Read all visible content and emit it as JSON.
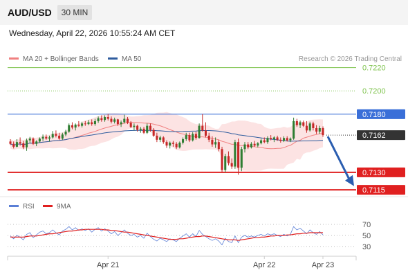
{
  "header": {
    "symbol": "AUD/USD",
    "timeframe": "30 MIN"
  },
  "datetime": "Wednesday, April 22, 2026 10:55:24 AM CET",
  "legend": [
    {
      "label": "MA 20 + Bollinger Bands",
      "color": "#f08080"
    },
    {
      "label": "MA 50",
      "color": "#2e5c9e"
    }
  ],
  "credit": "Research © 2026 Trading Central",
  "rsi_legend": [
    {
      "label": "RSI",
      "color": "#5b7fd6"
    },
    {
      "label": "9MA",
      "color": "#e02020"
    }
  ],
  "chart_data": [
    {
      "type": "candlestick",
      "ylim": [
        0.71115,
        0.72245
      ],
      "levels": [
        {
          "label": "0.7220",
          "value": 0.722,
          "color": "#7cc24a",
          "style": "solid"
        },
        {
          "label": "0.7200",
          "value": 0.72,
          "color": "#7cc24a",
          "style": "dotted"
        },
        {
          "label": "0.7180",
          "value": 0.718,
          "color": "#3a6fd8",
          "style": "solid"
        },
        {
          "label": "0.7162",
          "value": 0.7162,
          "color": "#333333",
          "style": "dotted"
        },
        {
          "label": "0.7130",
          "value": 0.713,
          "color": "#e02020",
          "style": "solid"
        },
        {
          "label": "0.7115",
          "value": 0.7115,
          "color": "#e02020",
          "style": "solid"
        }
      ],
      "current_price": 0.7162,
      "forecast_arrow": {
        "from": 0.7162,
        "to": 0.7117,
        "color": "#2a5db0"
      },
      "bullish_color": "#2e7d32",
      "bearish_color": "#c62828",
      "candles_ohlc": [
        [
          0.71565,
          0.71585,
          0.71535,
          0.71545
        ],
        [
          0.71545,
          0.71565,
          0.71505,
          0.7152
        ],
        [
          0.7152,
          0.71585,
          0.71515,
          0.7156
        ],
        [
          0.7156,
          0.716,
          0.7153,
          0.7155
        ],
        [
          0.7155,
          0.7157,
          0.715,
          0.71515
        ],
        [
          0.71515,
          0.7159,
          0.71485,
          0.71575
        ],
        [
          0.71575,
          0.71605,
          0.71555,
          0.7159
        ],
        [
          0.7159,
          0.716,
          0.71535,
          0.71545
        ],
        [
          0.71545,
          0.71575,
          0.71525,
          0.71565
        ],
        [
          0.71565,
          0.716,
          0.71555,
          0.7159
        ],
        [
          0.7159,
          0.71625,
          0.7157,
          0.71605
        ],
        [
          0.71605,
          0.71625,
          0.7158,
          0.7159
        ],
        [
          0.7159,
          0.71615,
          0.71565,
          0.716
        ],
        [
          0.716,
          0.71655,
          0.7159,
          0.7163
        ],
        [
          0.7163,
          0.7166,
          0.716,
          0.71615
        ],
        [
          0.71615,
          0.7164,
          0.7158,
          0.7159
        ],
        [
          0.7159,
          0.7164,
          0.7158,
          0.71625
        ],
        [
          0.71625,
          0.71665,
          0.7161,
          0.7165
        ],
        [
          0.7165,
          0.7172,
          0.7164,
          0.71705
        ],
        [
          0.71705,
          0.7173,
          0.7167,
          0.71685
        ],
        [
          0.71685,
          0.7172,
          0.7166,
          0.7171
        ],
        [
          0.7171,
          0.7174,
          0.7169,
          0.717
        ],
        [
          0.717,
          0.71735,
          0.71685,
          0.7172
        ],
        [
          0.7172,
          0.7174,
          0.717,
          0.71715
        ],
        [
          0.71715,
          0.7175,
          0.71705,
          0.7173
        ],
        [
          0.7173,
          0.71755,
          0.717,
          0.71715
        ],
        [
          0.71715,
          0.7176,
          0.717,
          0.7174
        ],
        [
          0.7174,
          0.7178,
          0.71725,
          0.71765
        ],
        [
          0.71765,
          0.7179,
          0.71735,
          0.7175
        ],
        [
          0.7175,
          0.7179,
          0.71735,
          0.71775
        ],
        [
          0.71775,
          0.718,
          0.71745,
          0.7176
        ],
        [
          0.7176,
          0.7178,
          0.7172,
          0.71735
        ],
        [
          0.71735,
          0.7177,
          0.7172,
          0.71755
        ],
        [
          0.71755,
          0.7176,
          0.717,
          0.71715
        ],
        [
          0.71715,
          0.71745,
          0.7169,
          0.7173
        ],
        [
          0.7173,
          0.71795,
          0.7172,
          0.7176
        ],
        [
          0.7176,
          0.71775,
          0.71715,
          0.71725
        ],
        [
          0.71725,
          0.7174,
          0.7168,
          0.7169
        ],
        [
          0.7169,
          0.7172,
          0.7166,
          0.717
        ],
        [
          0.717,
          0.7171,
          0.7165,
          0.71665
        ],
        [
          0.71665,
          0.7169,
          0.7164,
          0.71675
        ],
        [
          0.71675,
          0.7169,
          0.7163,
          0.7164
        ],
        [
          0.7164,
          0.7172,
          0.7163,
          0.717
        ],
        [
          0.717,
          0.7172,
          0.7165,
          0.71665
        ],
        [
          0.71665,
          0.7168,
          0.71605,
          0.71615
        ],
        [
          0.71615,
          0.7164,
          0.7156,
          0.7158
        ],
        [
          0.7158,
          0.71615,
          0.7156,
          0.716
        ],
        [
          0.716,
          0.7161,
          0.71545,
          0.7156
        ],
        [
          0.7156,
          0.71575,
          0.7151,
          0.7153
        ],
        [
          0.7153,
          0.71565,
          0.71505,
          0.71555
        ],
        [
          0.71555,
          0.7157,
          0.7152,
          0.71545
        ],
        [
          0.71545,
          0.7156,
          0.715,
          0.71515
        ],
        [
          0.71515,
          0.71565,
          0.71505,
          0.71555
        ],
        [
          0.71555,
          0.716,
          0.7154,
          0.71585
        ],
        [
          0.71585,
          0.7164,
          0.7157,
          0.7162
        ],
        [
          0.7162,
          0.7164,
          0.7156,
          0.71575
        ],
        [
          0.71575,
          0.71645,
          0.71565,
          0.7163
        ],
        [
          0.7163,
          0.7165,
          0.7158,
          0.71595
        ],
        [
          0.71595,
          0.7172,
          0.7159,
          0.717
        ],
        [
          0.717,
          0.718,
          0.7165,
          0.7166
        ],
        [
          0.7166,
          0.7173,
          0.716,
          0.71615
        ],
        [
          0.71615,
          0.7164,
          0.7156,
          0.7158
        ],
        [
          0.7158,
          0.7161,
          0.7152,
          0.7154
        ],
        [
          0.7154,
          0.716,
          0.7151,
          0.7156
        ],
        [
          0.7156,
          0.7158,
          0.7148,
          0.715
        ],
        [
          0.715,
          0.7152,
          0.713,
          0.7132
        ],
        [
          0.7132,
          0.7146,
          0.713,
          0.7144
        ],
        [
          0.7144,
          0.7148,
          0.7136,
          0.7138
        ],
        [
          0.7138,
          0.7142,
          0.7133,
          0.7135
        ],
        [
          0.7135,
          0.7158,
          0.7133,
          0.7156
        ],
        [
          0.7156,
          0.7159,
          0.7128,
          0.7134
        ],
        [
          0.7134,
          0.7152,
          0.7131,
          0.715
        ],
        [
          0.715,
          0.7156,
          0.7147,
          0.7154
        ],
        [
          0.7154,
          0.7156,
          0.715,
          0.71515
        ],
        [
          0.71515,
          0.7156,
          0.71505,
          0.71545
        ],
        [
          0.71545,
          0.7157,
          0.7152,
          0.7153
        ],
        [
          0.7153,
          0.7156,
          0.71515,
          0.7155
        ],
        [
          0.7155,
          0.7159,
          0.7154,
          0.71575
        ],
        [
          0.71575,
          0.716,
          0.7155,
          0.7156
        ],
        [
          0.7156,
          0.7161,
          0.71545,
          0.71595
        ],
        [
          0.71595,
          0.7162,
          0.71575,
          0.71585
        ],
        [
          0.71585,
          0.7161,
          0.7156,
          0.716
        ],
        [
          0.716,
          0.71615,
          0.7157,
          0.7158
        ],
        [
          0.7158,
          0.716,
          0.71555,
          0.7157
        ],
        [
          0.7157,
          0.7161,
          0.7156,
          0.71595
        ],
        [
          0.71595,
          0.7161,
          0.71565,
          0.71575
        ],
        [
          0.71575,
          0.716,
          0.7156,
          0.7159
        ],
        [
          0.7159,
          0.7177,
          0.7158,
          0.7174
        ],
        [
          0.7174,
          0.7176,
          0.7169,
          0.71705
        ],
        [
          0.71705,
          0.71745,
          0.7168,
          0.7173
        ],
        [
          0.7173,
          0.71745,
          0.7169,
          0.717
        ],
        [
          0.717,
          0.7174,
          0.7164,
          0.7166
        ],
        [
          0.7166,
          0.71735,
          0.7165,
          0.7172
        ],
        [
          0.7172,
          0.71735,
          0.7166,
          0.7168
        ],
        [
          0.7168,
          0.71705,
          0.7163,
          0.7165
        ],
        [
          0.7165,
          0.717,
          0.7163,
          0.7168
        ],
        [
          0.7168,
          0.71695,
          0.71605,
          0.7162
        ]
      ]
    },
    {
      "type": "line",
      "name": "RSI",
      "ylim": [
        15,
        85
      ],
      "yticks": [
        70,
        50,
        30
      ],
      "x_ticks": [
        {
          "label": "Apr 21",
          "index": 30
        },
        {
          "label": "Apr 22",
          "index": 78
        },
        {
          "label": "Apr 23",
          "index": 96
        }
      ],
      "series": [
        {
          "name": "RSI",
          "color": "#5b7fd6",
          "values": [
            49,
            44,
            50,
            47,
            42,
            52,
            55,
            46,
            51,
            56,
            58,
            53,
            55,
            60,
            55,
            51,
            58,
            61,
            66,
            60,
            64,
            59,
            62,
            59,
            62,
            56,
            61,
            64,
            58,
            62,
            58,
            53,
            57,
            50,
            55,
            60,
            54,
            50,
            52,
            47,
            50,
            45,
            54,
            48,
            43,
            40,
            45,
            42,
            39,
            44,
            42,
            39,
            45,
            49,
            53,
            47,
            53,
            48,
            59,
            52,
            48,
            44,
            41,
            44,
            40,
            33,
            45,
            39,
            37,
            49,
            37,
            47,
            50,
            47,
            49,
            47,
            50,
            52,
            49,
            53,
            51,
            53,
            50,
            48,
            52,
            49,
            52,
            66,
            60,
            63,
            58,
            53,
            60,
            55,
            52,
            57,
            51
          ]
        },
        {
          "name": "9MA",
          "color": "#e02020",
          "values": [
            47,
            47,
            47,
            47,
            47,
            48,
            49,
            49,
            49,
            50,
            51,
            52,
            53,
            53,
            54,
            55,
            56,
            57,
            58,
            58,
            59,
            60,
            60,
            61,
            61,
            61,
            61,
            61,
            61,
            60,
            60,
            59,
            59,
            58,
            57,
            56,
            56,
            55,
            54,
            53,
            52,
            51,
            50,
            49,
            48,
            47,
            46,
            45,
            44,
            43,
            43,
            43,
            44,
            44,
            45,
            46,
            47,
            48,
            48,
            49,
            49,
            48,
            47,
            46,
            45,
            44,
            43,
            42,
            42,
            42,
            41,
            42,
            43,
            44,
            45,
            46,
            46,
            47,
            47,
            48,
            49,
            49,
            50,
            50,
            50,
            51,
            51,
            52,
            53,
            53,
            54,
            54,
            55,
            55,
            55,
            55,
            55
          ]
        }
      ]
    }
  ]
}
